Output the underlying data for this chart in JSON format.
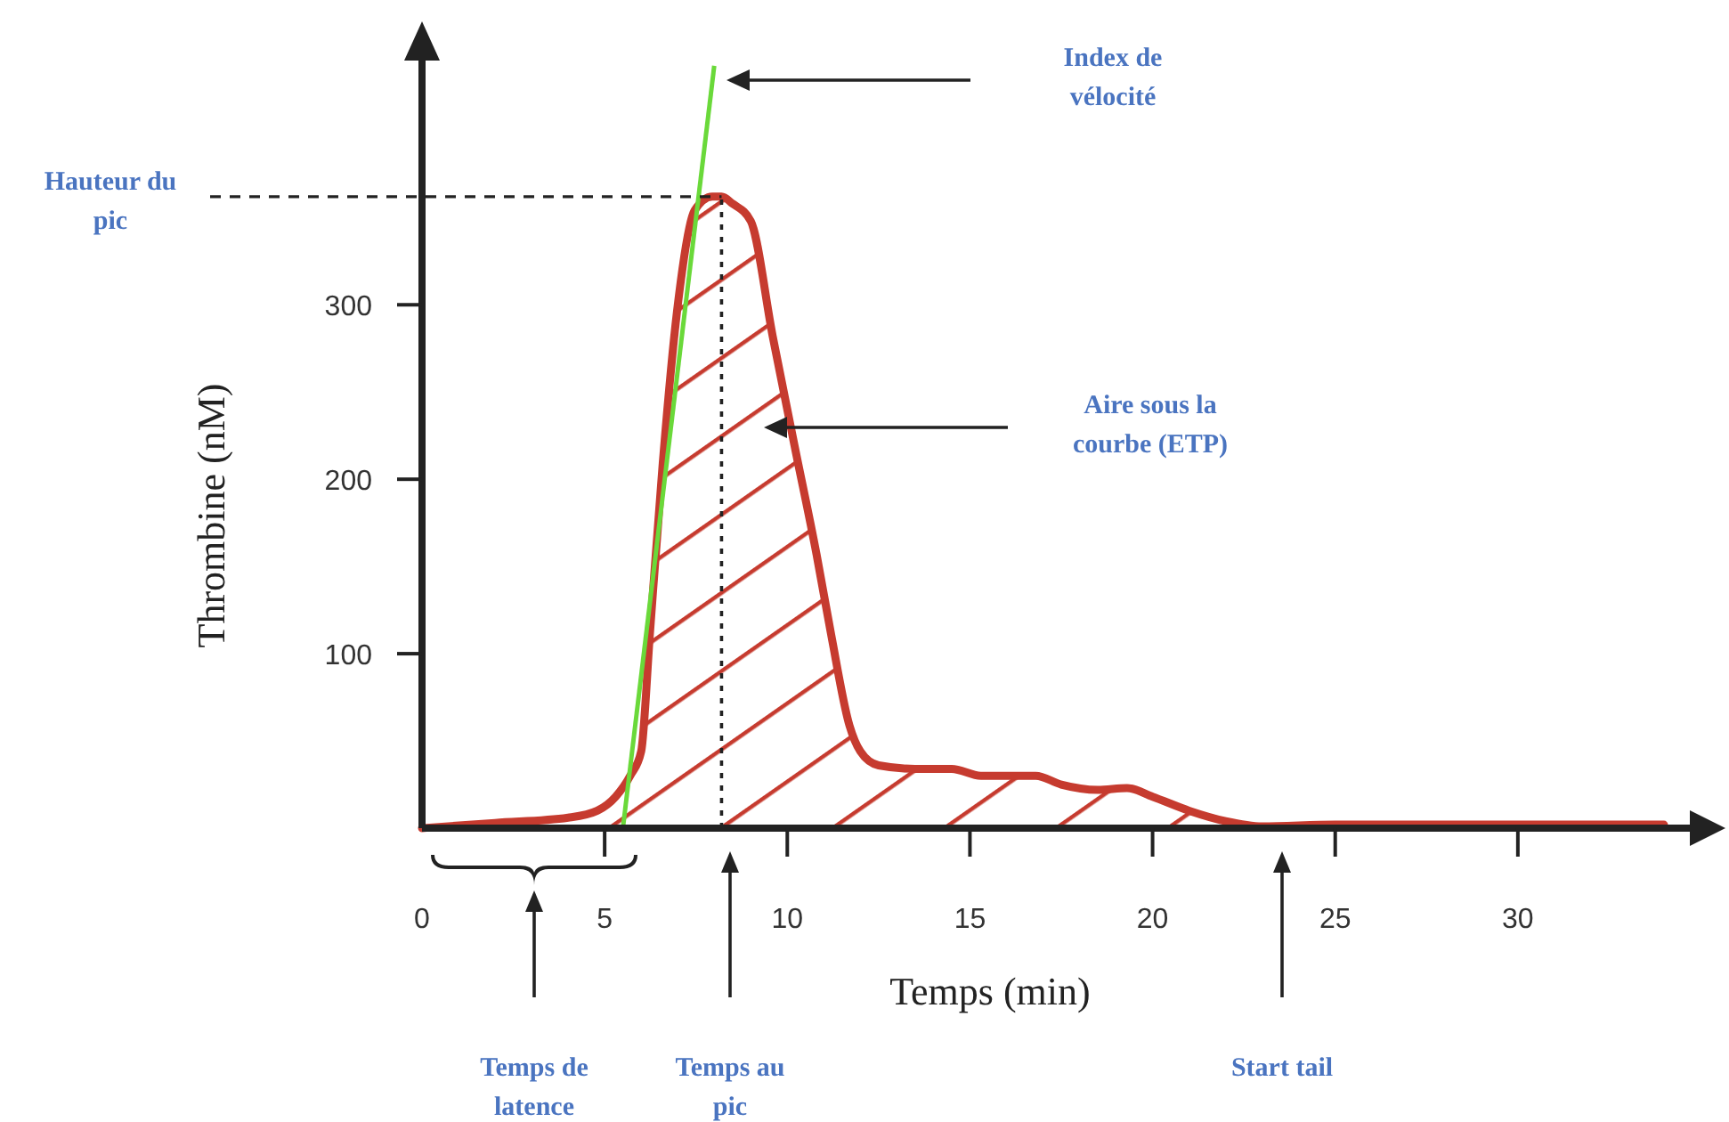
{
  "chart_data": {
    "type": "area",
    "xlabel": "Temps (min)",
    "ylabel": "Thrombine (nM)",
    "xlim": [
      0,
      35
    ],
    "ylim": [
      0,
      440
    ],
    "xticks": [
      0,
      5,
      10,
      15,
      20,
      25,
      30
    ],
    "yticks": [
      100,
      200,
      300
    ],
    "series": [
      {
        "color": "#c63b2f",
        "x": [
          0,
          2,
          4,
          4.8,
          5.3,
          5.7,
          6.0,
          6.24,
          6.59,
          6.98,
          7.46,
          7.95,
          8.2,
          8.5,
          9.0,
          9.6,
          10.2,
          10.8,
          11.2,
          11.7,
          12.0,
          12.5,
          13.5,
          14.5,
          15.3,
          16,
          16.8,
          17.5,
          18.5,
          19.3,
          20,
          21,
          22,
          23,
          25,
          30,
          34
        ],
        "values": [
          0,
          3,
          6,
          10,
          18,
          30,
          44,
          112,
          209,
          296,
          354,
          362,
          362,
          358,
          348,
          282,
          219,
          157,
          111,
          59,
          44,
          36,
          34,
          34,
          30,
          30,
          30,
          25,
          22,
          23,
          18,
          10,
          4,
          1,
          2,
          2,
          2
        ]
      },
      {
        "type": "line",
        "color": "#6ad93a",
        "x": [
          5.5,
          8
        ],
        "values": [
          0,
          437
        ]
      }
    ],
    "ref_lines": [
      {
        "axis": "y",
        "value": 362,
        "label": "Hauteur du pic",
        "line_style": "dashed",
        "color": "#222222"
      },
      {
        "axis": "x",
        "value": 8.2,
        "line_style": "dotted",
        "color": "#222222"
      }
    ],
    "annotations": [
      "Index de vélocité",
      "Aire sous la courbe (ETP)",
      "Temps de latence",
      "Temps au pic",
      "Start tail"
    ]
  }
}
